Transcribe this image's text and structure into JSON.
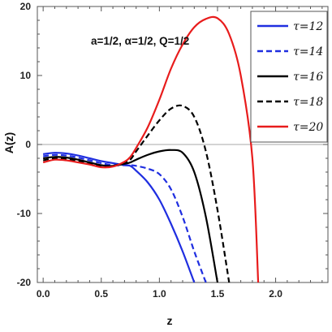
{
  "chart_data": {
    "type": "line",
    "title": "",
    "annotation": "a=1/2, α=1/2, Q=1/2",
    "xlabel": "z",
    "ylabel": "A(z)",
    "xlim": [
      -0.05,
      2.45
    ],
    "ylim": [
      -20,
      20
    ],
    "xticks": [
      0.0,
      0.5,
      1.0,
      1.5,
      2.0
    ],
    "xtick_labels": [
      "0.0",
      "0.5",
      "1.0",
      "1.5",
      "2.0"
    ],
    "yticks": [
      -20,
      -10,
      0,
      10,
      20
    ],
    "ytick_labels": [
      "-20",
      "-10",
      "0",
      "10",
      "20"
    ],
    "zero_line": true,
    "grid": false,
    "legend_position": "top-right",
    "x": [
      0.0,
      0.1,
      0.2,
      0.3,
      0.4,
      0.5,
      0.6,
      0.7,
      0.75,
      0.8,
      0.9,
      1.0,
      1.1,
      1.2,
      1.3,
      1.4,
      1.5,
      1.6,
      1.7,
      1.8,
      1.85
    ],
    "series": [
      {
        "name": "τ=12",
        "color": "#1f2ee0",
        "dash": "solid",
        "values": [
          -1.4,
          -1.2,
          -1.3,
          -1.6,
          -2.0,
          -2.4,
          -2.7,
          -3.0,
          -3.1,
          -3.8,
          -5.5,
          -8.0,
          -11.5,
          -15.5,
          -20.0,
          null,
          null,
          null,
          null,
          null,
          null
        ]
      },
      {
        "name": "τ=14",
        "color": "#1f2ee0",
        "dash": "dashed",
        "values": [
          -1.7,
          -1.5,
          -1.6,
          -1.9,
          -2.3,
          -2.7,
          -3.0,
          -3.0,
          -3.0,
          -3.1,
          -3.5,
          -4.3,
          -6.5,
          -10.5,
          -15.5,
          -20.0,
          null,
          null,
          null,
          null,
          null
        ]
      },
      {
        "name": "τ=16",
        "color": "#000000",
        "dash": "solid",
        "values": [
          -2.0,
          -1.8,
          -1.9,
          -2.2,
          -2.6,
          -3.0,
          -3.1,
          -2.8,
          -2.6,
          -2.2,
          -1.5,
          -1.0,
          -0.8,
          -1.2,
          -4.0,
          -10.5,
          -20.0,
          null,
          null,
          null,
          null
        ]
      },
      {
        "name": "τ=18",
        "color": "#000000",
        "dash": "dashed",
        "values": [
          -2.3,
          -2.0,
          -2.1,
          -2.4,
          -2.8,
          -3.2,
          -3.1,
          -2.6,
          -2.2,
          -1.0,
          1.3,
          3.5,
          5.2,
          5.6,
          4.0,
          -1.0,
          -9.5,
          -20.0,
          null,
          null,
          null
        ]
      },
      {
        "name": "τ=20",
        "color": "#e81c1c",
        "dash": "solid",
        "values": [
          -2.6,
          -2.2,
          -2.3,
          -2.6,
          -2.9,
          -3.3,
          -3.2,
          -2.5,
          -1.8,
          -0.5,
          2.5,
          6.5,
          11.0,
          14.5,
          17.0,
          18.2,
          18.3,
          16.0,
          10.0,
          -2.0,
          -20.0
        ]
      }
    ]
  }
}
